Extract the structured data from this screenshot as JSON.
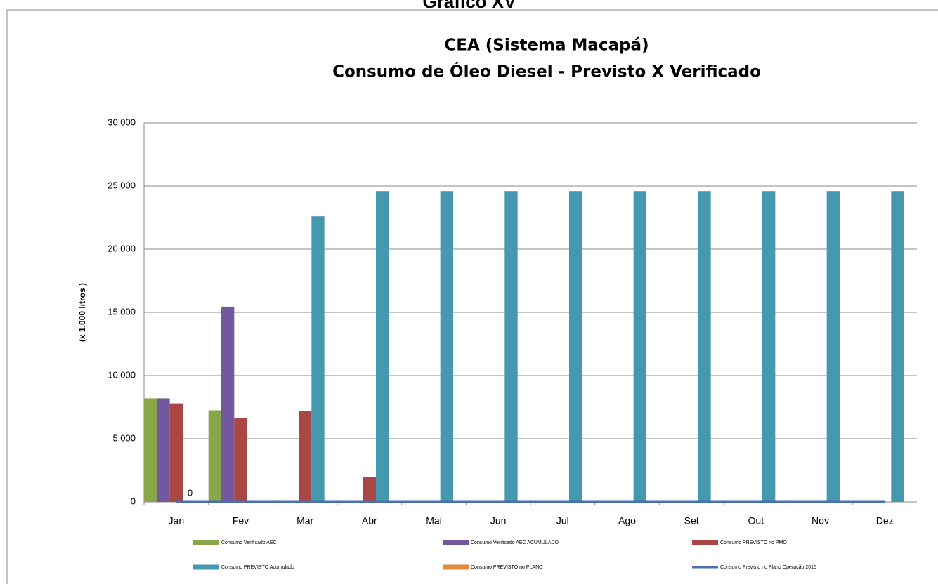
{
  "page_title": "Gráfico XV",
  "chart_data": {
    "type": "bar",
    "title": "CEA (Sistema Macapá)",
    "subtitle": "Consumo de Óleo Diesel - Previsto X Verificado",
    "y_label": "(x 1.000 litros )",
    "categories": [
      "Jan",
      "Fev",
      "Mar",
      "Abr",
      "Mai",
      "Jun",
      "Jul",
      "Ago",
      "Set",
      "Out",
      "Nov",
      "Dez"
    ],
    "series": [
      {
        "name": "Consumo Verificado AEC",
        "color": "#8aa64a",
        "type": "bar",
        "values": [
          8200,
          7250,
          null,
          null,
          null,
          null,
          null,
          null,
          null,
          null,
          null,
          null
        ]
      },
      {
        "name": "Consumo Verificado AEC ACUMULADO",
        "color": "#7358a0",
        "type": "bar",
        "values": [
          8200,
          15450,
          null,
          null,
          null,
          null,
          null,
          null,
          null,
          null,
          null,
          null
        ]
      },
      {
        "name": "Consumo PREVISTO no PMO",
        "color": "#a84744",
        "type": "bar",
        "values": [
          7800,
          6650,
          7200,
          1950,
          null,
          null,
          null,
          null,
          null,
          null,
          null,
          null
        ]
      },
      {
        "name": "Consumo PREVISTO Acumulado",
        "color": "#4598ae",
        "type": "bar",
        "values": [
          null,
          null,
          22600,
          24600,
          24600,
          24600,
          24600,
          24600,
          24600,
          24600,
          24600,
          24600
        ]
      },
      {
        "name": "Consumo PREVISTO no PLANO",
        "color": "#e08a3c",
        "type": "bar",
        "values": [
          null,
          null,
          null,
          null,
          null,
          null,
          null,
          null,
          null,
          null,
          null,
          null
        ]
      },
      {
        "name": "Consumo Previsto no Plano Operação 2015",
        "color": "#4a6fb0",
        "type": "line",
        "values": [
          0,
          0,
          0,
          0,
          0,
          0,
          0,
          0,
          0,
          0,
          0,
          0
        ]
      }
    ],
    "ylim": [
      0,
      30000
    ],
    "yticks": [
      {
        "value": 0,
        "label": "0"
      },
      {
        "value": 5000,
        "label": "5.000"
      },
      {
        "value": 10000,
        "label": "10.000"
      },
      {
        "value": 15000,
        "label": "15.000"
      },
      {
        "value": 20000,
        "label": "20.000"
      },
      {
        "value": 25000,
        "label": "25.000"
      },
      {
        "value": 30000,
        "label": "30.000"
      }
    ],
    "grid": true,
    "legend": "bottom"
  }
}
